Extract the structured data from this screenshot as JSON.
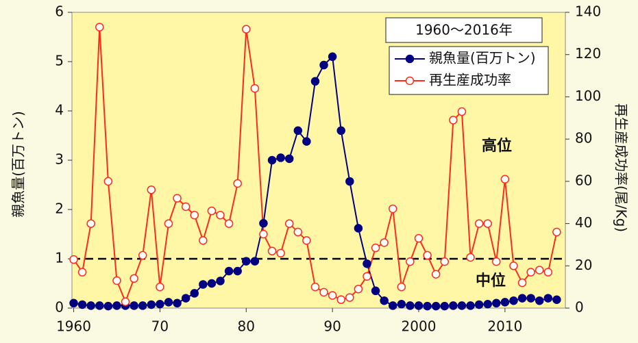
{
  "chart_data": {
    "type": "line",
    "x": [
      1960,
      1961,
      1962,
      1963,
      1964,
      1965,
      1966,
      1967,
      1968,
      1969,
      1970,
      1971,
      1972,
      1973,
      1974,
      1975,
      1976,
      1977,
      1978,
      1979,
      1980,
      1981,
      1982,
      1983,
      1984,
      1985,
      1986,
      1987,
      1988,
      1989,
      1990,
      1991,
      1992,
      1993,
      1994,
      1995,
      1996,
      1997,
      1998,
      1999,
      2000,
      2001,
      2002,
      2003,
      2004,
      2005,
      2006,
      2007,
      2008,
      2009,
      2010,
      2011,
      2012,
      2013,
      2014,
      2015,
      2016
    ],
    "series": [
      {
        "name": "親魚量(百万トン)",
        "color": "#000080",
        "marker": "filled",
        "axis": "y",
        "values": [
          0.1,
          0.07,
          0.05,
          0.05,
          0.04,
          0.05,
          0.05,
          0.05,
          0.05,
          0.07,
          0.08,
          0.12,
          0.1,
          0.2,
          0.3,
          0.48,
          0.5,
          0.55,
          0.75,
          0.75,
          0.95,
          0.95,
          1.72,
          3.0,
          3.05,
          3.03,
          3.6,
          3.38,
          4.6,
          4.93,
          5.1,
          3.6,
          2.57,
          1.62,
          0.9,
          0.35,
          0.15,
          0.05,
          0.08,
          0.05,
          0.05,
          0.04,
          0.04,
          0.04,
          0.05,
          0.05,
          0.05,
          0.07,
          0.08,
          0.1,
          0.12,
          0.15,
          0.2,
          0.2,
          0.15,
          0.2,
          0.17
        ]
      },
      {
        "name": "再生産成功率",
        "color": "#ff2a1a",
        "marker": "open",
        "axis": "y2",
        "values": [
          23,
          17,
          40,
          133,
          60,
          13,
          3,
          14,
          25,
          56,
          10,
          40,
          52,
          48,
          44,
          32,
          46,
          44,
          40,
          59,
          132,
          104,
          35,
          27,
          26,
          40,
          36,
          32,
          10,
          7.5,
          6,
          4,
          5,
          9,
          15,
          28.5,
          31,
          47,
          10,
          22,
          33,
          25,
          16,
          22,
          89,
          93,
          24,
          40,
          40,
          22,
          61,
          20,
          12,
          17,
          18,
          17,
          36
        ]
      }
    ],
    "xlim": [
      1959.8,
      2017
    ],
    "xticks": [
      1960,
      {
        "value": 1970,
        "label": "70"
      },
      {
        "value": 1980,
        "label": "80"
      },
      {
        "value": 1990,
        "label": "90"
      },
      2000,
      2010
    ],
    "ylim": [
      0,
      6
    ],
    "yticks": [
      0,
      1,
      2,
      3,
      4,
      5,
      6
    ],
    "y2lim": [
      0,
      140
    ],
    "y2ticks": [
      0,
      20,
      40,
      60,
      80,
      100,
      120,
      140
    ],
    "y_label": "親魚量(百万トン)",
    "y2_label": "再生産成功率(尾/Kg)",
    "legend_title": "1960～2016年",
    "reference_line": 1,
    "annotations": [
      "高位",
      "中位"
    ]
  }
}
